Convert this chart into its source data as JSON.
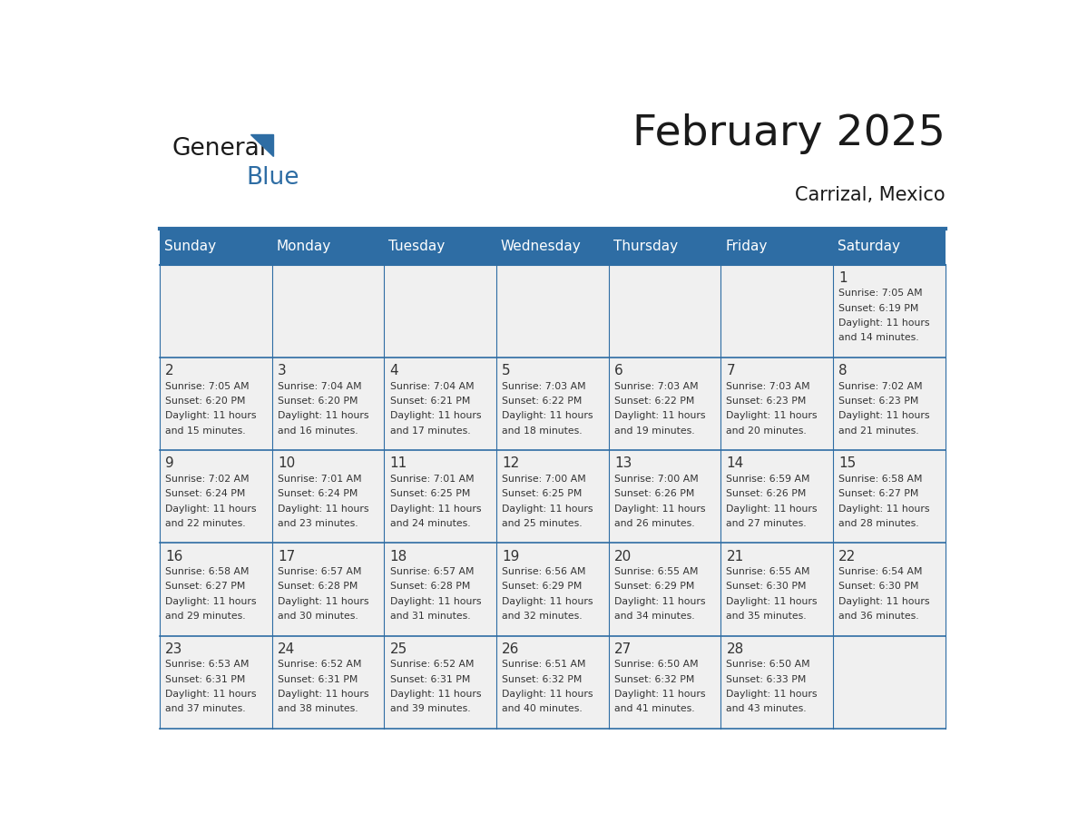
{
  "title": "February 2025",
  "subtitle": "Carrizal, Mexico",
  "header_bg": "#2E6DA4",
  "header_text_color": "#FFFFFF",
  "cell_bg_light": "#F0F0F0",
  "border_color": "#2E6DA4",
  "day_names": [
    "Sunday",
    "Monday",
    "Tuesday",
    "Wednesday",
    "Thursday",
    "Friday",
    "Saturday"
  ],
  "days": [
    {
      "day": 1,
      "col": 6,
      "row": 0,
      "sunrise": "7:05 AM",
      "sunset": "6:19 PM",
      "daylight_suffix": "14 minutes."
    },
    {
      "day": 2,
      "col": 0,
      "row": 1,
      "sunrise": "7:05 AM",
      "sunset": "6:20 PM",
      "daylight_suffix": "15 minutes."
    },
    {
      "day": 3,
      "col": 1,
      "row": 1,
      "sunrise": "7:04 AM",
      "sunset": "6:20 PM",
      "daylight_suffix": "16 minutes."
    },
    {
      "day": 4,
      "col": 2,
      "row": 1,
      "sunrise": "7:04 AM",
      "sunset": "6:21 PM",
      "daylight_suffix": "17 minutes."
    },
    {
      "day": 5,
      "col": 3,
      "row": 1,
      "sunrise": "7:03 AM",
      "sunset": "6:22 PM",
      "daylight_suffix": "18 minutes."
    },
    {
      "day": 6,
      "col": 4,
      "row": 1,
      "sunrise": "7:03 AM",
      "sunset": "6:22 PM",
      "daylight_suffix": "19 minutes."
    },
    {
      "day": 7,
      "col": 5,
      "row": 1,
      "sunrise": "7:03 AM",
      "sunset": "6:23 PM",
      "daylight_suffix": "20 minutes."
    },
    {
      "day": 8,
      "col": 6,
      "row": 1,
      "sunrise": "7:02 AM",
      "sunset": "6:23 PM",
      "daylight_suffix": "21 minutes."
    },
    {
      "day": 9,
      "col": 0,
      "row": 2,
      "sunrise": "7:02 AM",
      "sunset": "6:24 PM",
      "daylight_suffix": "22 minutes."
    },
    {
      "day": 10,
      "col": 1,
      "row": 2,
      "sunrise": "7:01 AM",
      "sunset": "6:24 PM",
      "daylight_suffix": "23 minutes."
    },
    {
      "day": 11,
      "col": 2,
      "row": 2,
      "sunrise": "7:01 AM",
      "sunset": "6:25 PM",
      "daylight_suffix": "24 minutes."
    },
    {
      "day": 12,
      "col": 3,
      "row": 2,
      "sunrise": "7:00 AM",
      "sunset": "6:25 PM",
      "daylight_suffix": "25 minutes."
    },
    {
      "day": 13,
      "col": 4,
      "row": 2,
      "sunrise": "7:00 AM",
      "sunset": "6:26 PM",
      "daylight_suffix": "26 minutes."
    },
    {
      "day": 14,
      "col": 5,
      "row": 2,
      "sunrise": "6:59 AM",
      "sunset": "6:26 PM",
      "daylight_suffix": "27 minutes."
    },
    {
      "day": 15,
      "col": 6,
      "row": 2,
      "sunrise": "6:58 AM",
      "sunset": "6:27 PM",
      "daylight_suffix": "28 minutes."
    },
    {
      "day": 16,
      "col": 0,
      "row": 3,
      "sunrise": "6:58 AM",
      "sunset": "6:27 PM",
      "daylight_suffix": "29 minutes."
    },
    {
      "day": 17,
      "col": 1,
      "row": 3,
      "sunrise": "6:57 AM",
      "sunset": "6:28 PM",
      "daylight_suffix": "30 minutes."
    },
    {
      "day": 18,
      "col": 2,
      "row": 3,
      "sunrise": "6:57 AM",
      "sunset": "6:28 PM",
      "daylight_suffix": "31 minutes."
    },
    {
      "day": 19,
      "col": 3,
      "row": 3,
      "sunrise": "6:56 AM",
      "sunset": "6:29 PM",
      "daylight_suffix": "32 minutes."
    },
    {
      "day": 20,
      "col": 4,
      "row": 3,
      "sunrise": "6:55 AM",
      "sunset": "6:29 PM",
      "daylight_suffix": "34 minutes."
    },
    {
      "day": 21,
      "col": 5,
      "row": 3,
      "sunrise": "6:55 AM",
      "sunset": "6:30 PM",
      "daylight_suffix": "35 minutes."
    },
    {
      "day": 22,
      "col": 6,
      "row": 3,
      "sunrise": "6:54 AM",
      "sunset": "6:30 PM",
      "daylight_suffix": "36 minutes."
    },
    {
      "day": 23,
      "col": 0,
      "row": 4,
      "sunrise": "6:53 AM",
      "sunset": "6:31 PM",
      "daylight_suffix": "37 minutes."
    },
    {
      "day": 24,
      "col": 1,
      "row": 4,
      "sunrise": "6:52 AM",
      "sunset": "6:31 PM",
      "daylight_suffix": "38 minutes."
    },
    {
      "day": 25,
      "col": 2,
      "row": 4,
      "sunrise": "6:52 AM",
      "sunset": "6:31 PM",
      "daylight_suffix": "39 minutes."
    },
    {
      "day": 26,
      "col": 3,
      "row": 4,
      "sunrise": "6:51 AM",
      "sunset": "6:32 PM",
      "daylight_suffix": "40 minutes."
    },
    {
      "day": 27,
      "col": 4,
      "row": 4,
      "sunrise": "6:50 AM",
      "sunset": "6:32 PM",
      "daylight_suffix": "41 minutes."
    },
    {
      "day": 28,
      "col": 5,
      "row": 4,
      "sunrise": "6:50 AM",
      "sunset": "6:33 PM",
      "daylight_suffix": "43 minutes."
    }
  ],
  "num_rows": 5,
  "num_cols": 7,
  "logo_text1": "General",
  "logo_text2": "Blue",
  "logo_text1_color": "#1a1a1a",
  "logo_text2_color": "#2E6DA4",
  "logo_triangle_color": "#2E6DA4",
  "text_color": "#333333",
  "title_color": "#1a1a1a"
}
